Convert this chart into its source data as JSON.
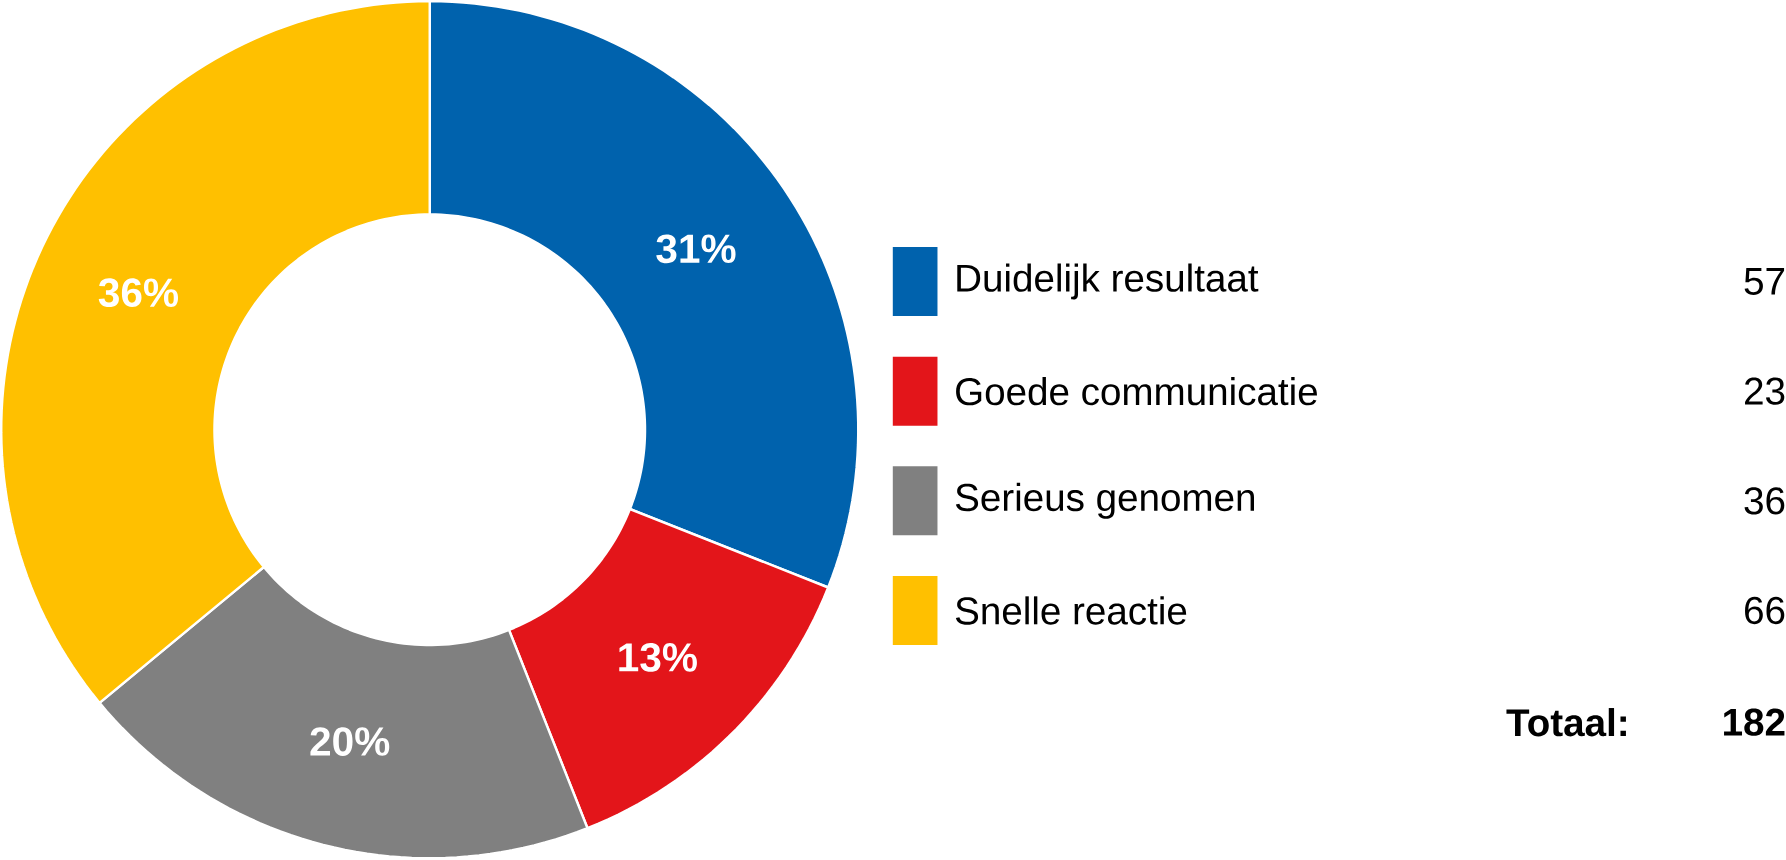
{
  "chart_data": {
    "type": "donut",
    "categories": [
      "Duidelijk resultaat",
      "Goede communicatie",
      "Serieus genomen",
      "Snelle reactie"
    ],
    "values": [
      31,
      13,
      20,
      36
    ],
    "colors": [
      "#0062ad",
      "#e3151a",
      "#808080",
      "#ffc000"
    ],
    "value_labels": [
      "31%",
      "13%",
      "20%",
      "36%"
    ],
    "legend": "right",
    "annotations": [
      "57",
      "23",
      "36",
      "66",
      "Totaal:",
      "182"
    ]
  }
}
